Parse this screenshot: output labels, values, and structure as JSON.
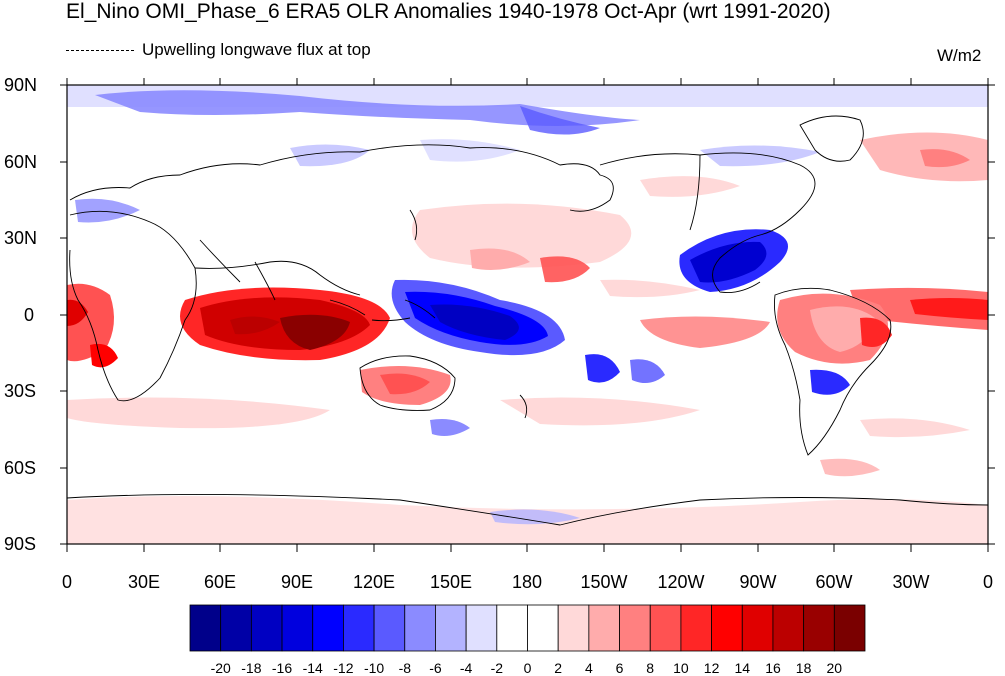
{
  "title": "El_Nino OMI_Phase_6 ERA5 OLR Anomalies 1940-1978 Oct-Apr (wrt 1991-2020)",
  "subtitle": "Upwelling longwave flux at top",
  "units": "W/m2",
  "lat_labels": [
    "90N",
    "60N",
    "30N",
    "0",
    "30S",
    "60S",
    "90S"
  ],
  "lon_labels": [
    "0",
    "30E",
    "60E",
    "90E",
    "120E",
    "150E",
    "180",
    "150W",
    "120W",
    "90W",
    "60W",
    "30W",
    "0"
  ],
  "colorbar": {
    "labels": [
      "-20",
      "-18",
      "-16",
      "-14",
      "-12",
      "-10",
      "-8",
      "-6",
      "-4",
      "-2",
      "0",
      "2",
      "4",
      "6",
      "8",
      "10",
      "12",
      "14",
      "16",
      "18",
      "20"
    ],
    "colors": [
      "#00008a",
      "#0000a6",
      "#0000c2",
      "#0000de",
      "#0000ff",
      "#2a2aff",
      "#5a5aff",
      "#8b8bff",
      "#b3b3ff",
      "#e0e0ff",
      "#ffffff",
      "#ffffff",
      "#ffd9d9",
      "#ffacac",
      "#ff8080",
      "#ff5252",
      "#ff2626",
      "#ff0000",
      "#e00000",
      "#bb0000",
      "#990000",
      "#7a0000"
    ]
  },
  "anomaly_features": [
    {
      "name": "Indian Ocean positive",
      "color": "#d00000"
    },
    {
      "name": "Maritime continent core",
      "color": "#8a0000"
    },
    {
      "name": "West Pacific negative",
      "color": "#0000e0"
    },
    {
      "name": "Central America negative",
      "color": "#0000d0"
    },
    {
      "name": "Amazon positive",
      "color": "#ff3030"
    },
    {
      "name": "Equatorial Atlantic positive",
      "color": "#ff1a1a"
    },
    {
      "name": "Arctic negative",
      "color": "#9a9aff"
    }
  ]
}
